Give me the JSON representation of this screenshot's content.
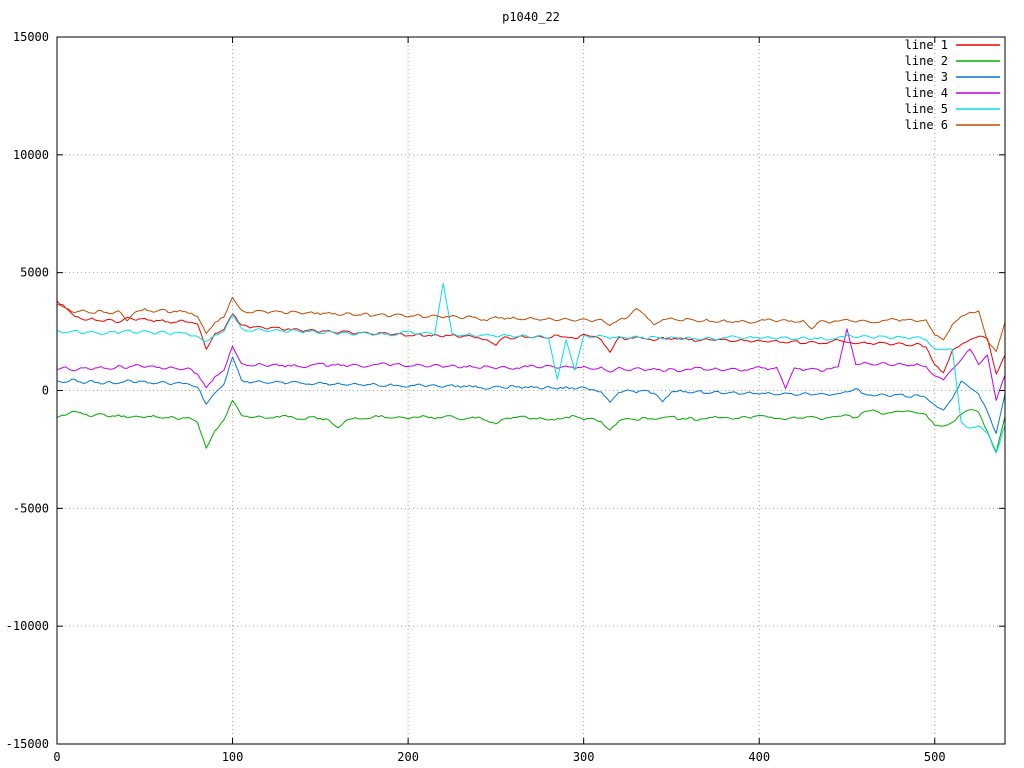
{
  "chart_data": {
    "type": "line",
    "title": "p1040_22",
    "xlabel": "",
    "ylabel": "",
    "xlim": [
      0,
      540
    ],
    "ylim": [
      -15000,
      15000
    ],
    "xticks": [
      0,
      100,
      200,
      300,
      400,
      500
    ],
    "yticks": [
      -15000,
      -10000,
      -5000,
      0,
      5000,
      10000,
      15000
    ],
    "grid": "dotted",
    "grid_color": "#a0a0a0",
    "border_color": "#000000",
    "legend_position": "top-right-inside",
    "x_step": 5,
    "jitter": 45,
    "series": [
      {
        "name": "line 1",
        "color": "#ee0000",
        "values": [
          3800,
          3500,
          3150,
          3000,
          3080,
          2950,
          3020,
          2880,
          3100,
          2980,
          3060,
          2920,
          3000,
          2860,
          2980,
          2900,
          2820,
          1750,
          2420,
          2580,
          3250,
          2780,
          2650,
          2720,
          2600,
          2680,
          2560,
          2620,
          2500,
          2590,
          2480,
          2550,
          2430,
          2520,
          2400,
          2480,
          2380,
          2450,
          2350,
          2420,
          2320,
          2400,
          2300,
          2380,
          2280,
          2360,
          2260,
          2340,
          2240,
          2150,
          1920,
          2280,
          2200,
          2320,
          2240,
          2300,
          2220,
          2350,
          2270,
          2200,
          2380,
          2300,
          2150,
          1620,
          2250,
          2180,
          2280,
          2200,
          2120,
          2250,
          2170,
          2230,
          2150,
          2100,
          2200,
          2120,
          2180,
          2080,
          2160,
          2060,
          2140,
          2050,
          2120,
          2020,
          2100,
          2000,
          2080,
          1980,
          2060,
          2150,
          2050,
          1980,
          2060,
          1950,
          2040,
          1930,
          2020,
          1900,
          2000,
          1850,
          1100,
          760,
          1700,
          1950,
          2150,
          2300,
          2200,
          700,
          1500
        ]
      },
      {
        "name": "line 2",
        "color": "#00aa00",
        "values": [
          -1150,
          -1050,
          -880,
          -1000,
          -1100,
          -980,
          -1120,
          -1040,
          -1160,
          -1080,
          -1150,
          -1060,
          -1180,
          -1100,
          -1220,
          -1140,
          -1350,
          -2450,
          -1700,
          -1250,
          -420,
          -1050,
          -1150,
          -1080,
          -1180,
          -1100,
          -1050,
          -1160,
          -1220,
          -1120,
          -1180,
          -1260,
          -1580,
          -1250,
          -1150,
          -1200,
          -1120,
          -1060,
          -1170,
          -1110,
          -1210,
          -1140,
          -1090,
          -1200,
          -1130,
          -1080,
          -1240,
          -1170,
          -1120,
          -1280,
          -1420,
          -1200,
          -1140,
          -1090,
          -1210,
          -1150,
          -1260,
          -1190,
          -1130,
          -1080,
          -1250,
          -1180,
          -1320,
          -1680,
          -1300,
          -1190,
          -1260,
          -1140,
          -1220,
          -1160,
          -1100,
          -1230,
          -1150,
          -1270,
          -1190,
          -1100,
          -1160,
          -1220,
          -1120,
          -1180,
          -1060,
          -1130,
          -1190,
          -1240,
          -1120,
          -1180,
          -1100,
          -1230,
          -1150,
          -1090,
          -1040,
          -1160,
          -900,
          -820,
          -1010,
          -950,
          -890,
          -860,
          -960,
          -1020,
          -1480,
          -1500,
          -1350,
          -1020,
          -820,
          -930,
          -1750,
          -2620,
          -1100
        ]
      },
      {
        "name": "line 3",
        "color": "#0077dd",
        "values": [
          420,
          350,
          480,
          300,
          420,
          280,
          380,
          300,
          450,
          330,
          400,
          280,
          380,
          250,
          350,
          270,
          150,
          -580,
          -100,
          250,
          1420,
          450,
          320,
          420,
          300,
          400,
          280,
          380,
          300,
          250,
          350,
          230,
          320,
          220,
          300,
          200,
          300,
          180,
          280,
          200,
          150,
          260,
          160,
          240,
          140,
          240,
          130,
          220,
          120,
          60,
          180,
          100,
          200,
          90,
          180,
          80,
          170,
          60,
          160,
          50,
          140,
          40,
          -60,
          -500,
          -80,
          30,
          -100,
          10,
          -120,
          -480,
          -60,
          20,
          -100,
          -20,
          -120,
          -40,
          -140,
          -60,
          -150,
          -70,
          -160,
          -80,
          -180,
          -100,
          -190,
          -110,
          -200,
          -120,
          -210,
          -130,
          -60,
          80,
          -150,
          -230,
          -140,
          -250,
          -160,
          -280,
          -180,
          -300,
          -620,
          -830,
          -350,
          400,
          120,
          -150,
          -900,
          -1820,
          -150
        ]
      },
      {
        "name": "line 4",
        "color": "#c000ee",
        "values": [
          900,
          1000,
          840,
          960,
          880,
          1020,
          900,
          1060,
          940,
          1100,
          980,
          1040,
          920,
          1000,
          880,
          960,
          700,
          120,
          600,
          850,
          1880,
          1150,
          1050,
          1150,
          1020,
          1120,
          1000,
          1100,
          980,
          1080,
          1150,
          1030,
          1130,
          1010,
          1110,
          990,
          1090,
          1170,
          1050,
          1140,
          1020,
          1120,
          1000,
          1100,
          980,
          1080,
          960,
          1060,
          940,
          1040,
          920,
          1020,
          900,
          1000,
          1080,
          960,
          1060,
          940,
          1040,
          920,
          1020,
          900,
          1000,
          780,
          980,
          860,
          960,
          840,
          940,
          820,
          920,
          800,
          900,
          980,
          860,
          960,
          840,
          940,
          820,
          920,
          1000,
          880,
          980,
          80,
          960,
          840,
          940,
          820,
          920,
          1000,
          2620,
          1100,
          1200,
          1080,
          1180,
          1060,
          1160,
          1040,
          1140,
          1020,
          620,
          450,
          900,
          1300,
          1760,
          1100,
          1500,
          -420,
          650
        ]
      },
      {
        "name": "line 5",
        "color": "#00dfee",
        "values": [
          2550,
          2450,
          2560,
          2400,
          2520,
          2380,
          2500,
          2420,
          2560,
          2440,
          2540,
          2400,
          2500,
          2380,
          2480,
          2360,
          2300,
          2080,
          2350,
          2500,
          3220,
          2650,
          2520,
          2620,
          2500,
          2600,
          2480,
          2580,
          2440,
          2540,
          2420,
          2520,
          2380,
          2480,
          2360,
          2460,
          2340,
          2440,
          2320,
          2420,
          2500,
          2380,
          2480,
          2340,
          4550,
          2420,
          2320,
          2420,
          2300,
          2400,
          2280,
          2380,
          2260,
          2360,
          2240,
          2340,
          2220,
          480,
          2150,
          860,
          2320,
          2240,
          2330,
          2200,
          2300,
          2220,
          2310,
          2190,
          2290,
          2180,
          2280,
          2160,
          2260,
          2150,
          2250,
          2140,
          2240,
          2320,
          2220,
          2300,
          2200,
          2290,
          2180,
          2280,
          2170,
          2270,
          2160,
          2260,
          2150,
          2250,
          2350,
          2240,
          2330,
          2220,
          2310,
          2200,
          2300,
          2190,
          2280,
          2170,
          1780,
          1760,
          1750,
          -1350,
          -1600,
          -1500,
          -1800,
          -2650,
          -1500
        ]
      },
      {
        "name": "line 6",
        "color": "#bf4b00",
        "values": [
          3650,
          3500,
          3300,
          3420,
          3280,
          3400,
          3250,
          3380,
          2950,
          3350,
          3480,
          3320,
          3440,
          3300,
          3400,
          3280,
          3150,
          2420,
          2900,
          3100,
          3950,
          3420,
          3300,
          3400,
          3280,
          3380,
          3260,
          3360,
          3240,
          3340,
          3220,
          3320,
          3200,
          3300,
          3180,
          3280,
          3160,
          3260,
          3140,
          3240,
          3120,
          3220,
          3100,
          3200,
          3080,
          3180,
          3060,
          3160,
          3040,
          2960,
          3140,
          3020,
          3120,
          3000,
          3100,
          2980,
          3080,
          2960,
          3060,
          2940,
          3040,
          2920,
          3020,
          2760,
          3000,
          3100,
          3480,
          3200,
          2780,
          3000,
          3080,
          2960,
          3040,
          2920,
          3020,
          2900,
          3000,
          2880,
          2980,
          2860,
          2960,
          3040,
          2920,
          3000,
          2900,
          2980,
          2620,
          2960,
          2860,
          2940,
          3020,
          2900,
          2980,
          2880,
          2960,
          3060,
          2940,
          3020,
          2920,
          3000,
          2350,
          2150,
          2800,
          3150,
          3320,
          3380,
          2100,
          1650,
          2900
        ]
      }
    ]
  }
}
